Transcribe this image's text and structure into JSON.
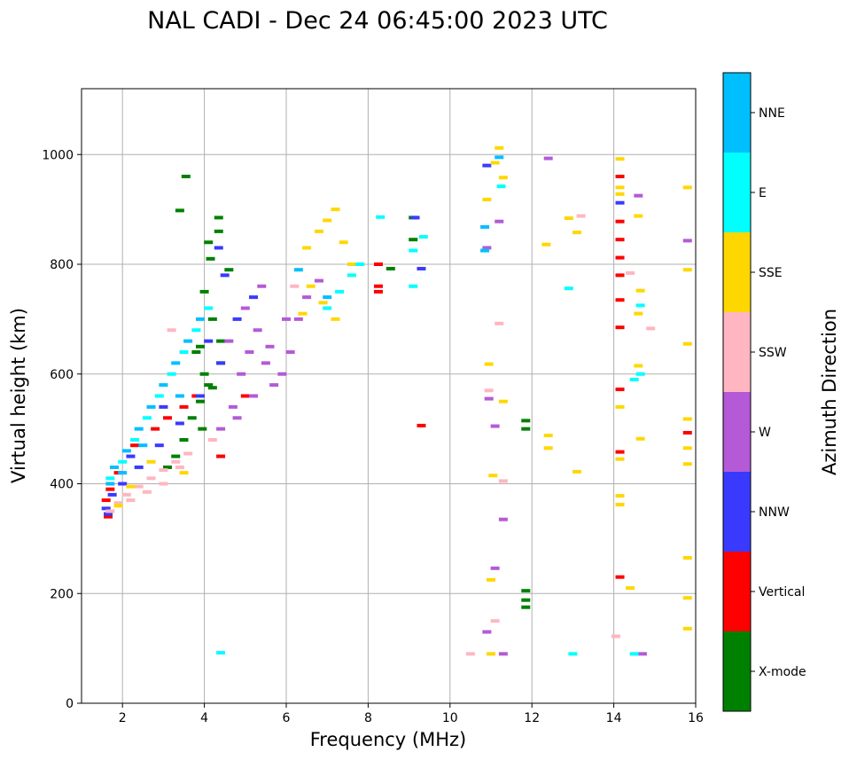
{
  "chart_data": {
    "type": "scatter",
    "title": "NAL CADI - Dec 24 06:45:00 2023 UTC",
    "xlabel": "Frequency (MHz)",
    "ylabel": "Virtual height (km)",
    "xlim": [
      1,
      16
    ],
    "ylim": [
      0,
      1120
    ],
    "xticks": [
      2,
      4,
      6,
      8,
      10,
      12,
      14,
      16
    ],
    "yticks": [
      0,
      200,
      400,
      600,
      800,
      1000
    ],
    "grid": true,
    "colorbar": {
      "label": "Azimuth Direction",
      "categories": [
        {
          "name": "X-mode",
          "color": "#008000"
        },
        {
          "name": "Vertical",
          "color": "#ff0000"
        },
        {
          "name": "NNW",
          "color": "#3a3aff"
        },
        {
          "name": "W",
          "color": "#b45ad6"
        },
        {
          "name": "SSW",
          "color": "#ffb6c1"
        },
        {
          "name": "SSE",
          "color": "#ffd700"
        },
        {
          "name": "E",
          "color": "#00ffff"
        },
        {
          "name": "NNE",
          "color": "#00bfff"
        }
      ]
    },
    "series": [
      {
        "name": "X-mode",
        "points": [
          [
            3.55,
            960
          ],
          [
            3.4,
            898
          ],
          [
            4.35,
            885
          ],
          [
            4.35,
            860
          ],
          [
            4.1,
            840
          ],
          [
            4.15,
            810
          ],
          [
            4.0,
            750
          ],
          [
            4.2,
            700
          ],
          [
            3.9,
            650
          ],
          [
            4.0,
            600
          ],
          [
            4.1,
            580
          ],
          [
            3.9,
            550
          ],
          [
            3.7,
            520
          ],
          [
            3.5,
            480
          ],
          [
            3.3,
            450
          ],
          [
            3.1,
            430
          ],
          [
            4.6,
            790
          ],
          [
            4.4,
            620
          ],
          [
            4.2,
            575
          ],
          [
            3.95,
            500
          ],
          [
            9.1,
            885
          ],
          [
            9.1,
            845
          ],
          [
            11.85,
            515
          ],
          [
            11.85,
            500
          ],
          [
            11.85,
            205
          ],
          [
            11.85,
            188
          ],
          [
            11.85,
            175
          ],
          [
            8.55,
            792
          ],
          [
            4.4,
            660
          ],
          [
            3.8,
            640
          ]
        ]
      },
      {
        "name": "Vertical",
        "points": [
          [
            1.6,
            370
          ],
          [
            1.7,
            390
          ],
          [
            1.9,
            420
          ],
          [
            2.3,
            470
          ],
          [
            2.8,
            500
          ],
          [
            3.1,
            520
          ],
          [
            3.5,
            540
          ],
          [
            3.8,
            560
          ],
          [
            14.15,
            960
          ],
          [
            14.15,
            878
          ],
          [
            14.15,
            845
          ],
          [
            14.15,
            812
          ],
          [
            14.15,
            780
          ],
          [
            14.15,
            735
          ],
          [
            14.15,
            685
          ],
          [
            14.15,
            572
          ],
          [
            14.15,
            458
          ],
          [
            14.15,
            230
          ],
          [
            15.8,
            493
          ],
          [
            9.3,
            506
          ],
          [
            8.25,
            760
          ],
          [
            8.25,
            750
          ],
          [
            8.25,
            800
          ],
          [
            4.4,
            450
          ],
          [
            5.0,
            560
          ],
          [
            1.65,
            340
          ]
        ]
      },
      {
        "name": "NNW",
        "points": [
          [
            1.6,
            355
          ],
          [
            1.75,
            380
          ],
          [
            2.0,
            400
          ],
          [
            2.4,
            430
          ],
          [
            2.9,
            470
          ],
          [
            3.4,
            510
          ],
          [
            3.9,
            560
          ],
          [
            4.4,
            620
          ],
          [
            4.8,
            700
          ],
          [
            5.2,
            740
          ],
          [
            4.5,
            780
          ],
          [
            4.35,
            830
          ],
          [
            10.9,
            980
          ],
          [
            14.15,
            912
          ],
          [
            9.3,
            792
          ],
          [
            9.15,
            885
          ],
          [
            2.2,
            450
          ],
          [
            3.0,
            540
          ],
          [
            1.65,
            345
          ],
          [
            4.1,
            660
          ]
        ]
      },
      {
        "name": "W",
        "points": [
          [
            4.7,
            540
          ],
          [
            4.9,
            600
          ],
          [
            5.1,
            640
          ],
          [
            5.3,
            680
          ],
          [
            5.5,
            620
          ],
          [
            5.7,
            580
          ],
          [
            5.9,
            600
          ],
          [
            6.1,
            640
          ],
          [
            6.3,
            700
          ],
          [
            6.5,
            740
          ],
          [
            6.8,
            770
          ],
          [
            4.8,
            520
          ],
          [
            5.2,
            560
          ],
          [
            5.6,
            650
          ],
          [
            6.0,
            700
          ],
          [
            4.6,
            660
          ],
          [
            5.0,
            720
          ],
          [
            5.4,
            760
          ],
          [
            4.4,
            500
          ],
          [
            12.4,
            993
          ],
          [
            15.8,
            843
          ],
          [
            14.6,
            925
          ],
          [
            11.2,
            878
          ],
          [
            10.9,
            830
          ],
          [
            10.95,
            555
          ],
          [
            11.3,
            90
          ],
          [
            14.7,
            90
          ],
          [
            10.9,
            130
          ],
          [
            11.1,
            246
          ],
          [
            11.3,
            335
          ],
          [
            11.1,
            505
          ]
        ]
      },
      {
        "name": "SSW",
        "points": [
          [
            1.7,
            350
          ],
          [
            1.9,
            365
          ],
          [
            2.1,
            380
          ],
          [
            2.4,
            395
          ],
          [
            2.7,
            410
          ],
          [
            3.0,
            425
          ],
          [
            3.3,
            440
          ],
          [
            3.6,
            455
          ],
          [
            2.2,
            370
          ],
          [
            2.6,
            385
          ],
          [
            3.0,
            400
          ],
          [
            3.4,
            430
          ],
          [
            3.2,
            680
          ],
          [
            4.2,
            480
          ],
          [
            6.2,
            760
          ],
          [
            13.2,
            888
          ],
          [
            14.4,
            784
          ],
          [
            14.9,
            683
          ],
          [
            11.2,
            692
          ],
          [
            10.95,
            570
          ],
          [
            11.3,
            405
          ],
          [
            11.1,
            150
          ],
          [
            10.5,
            90
          ],
          [
            14.05,
            122
          ]
        ]
      },
      {
        "name": "SSE",
        "points": [
          [
            6.5,
            830
          ],
          [
            6.8,
            860
          ],
          [
            7.0,
            880
          ],
          [
            7.2,
            900
          ],
          [
            7.4,
            840
          ],
          [
            7.6,
            800
          ],
          [
            6.6,
            760
          ],
          [
            6.9,
            730
          ],
          [
            7.2,
            700
          ],
          [
            6.4,
            710
          ],
          [
            3.5,
            420
          ],
          [
            2.7,
            440
          ],
          [
            2.2,
            395
          ],
          [
            1.9,
            360
          ],
          [
            11.2,
            1012
          ],
          [
            11.1,
            985
          ],
          [
            11.3,
            958
          ],
          [
            10.9,
            918
          ],
          [
            12.35,
            836
          ],
          [
            12.9,
            884
          ],
          [
            13.1,
            858
          ],
          [
            14.15,
            992
          ],
          [
            14.15,
            940
          ],
          [
            14.15,
            928
          ],
          [
            14.6,
            888
          ],
          [
            14.65,
            752
          ],
          [
            14.6,
            710
          ],
          [
            14.6,
            615
          ],
          [
            14.15,
            540
          ],
          [
            14.65,
            482
          ],
          [
            14.15,
            445
          ],
          [
            12.4,
            488
          ],
          [
            12.4,
            465
          ],
          [
            13.1,
            422
          ],
          [
            11.3,
            550
          ],
          [
            11.05,
            415
          ],
          [
            10.95,
            618
          ],
          [
            14.15,
            378
          ],
          [
            14.15,
            362
          ],
          [
            14.4,
            210
          ],
          [
            15.8,
            940
          ],
          [
            15.8,
            790
          ],
          [
            15.8,
            655
          ],
          [
            15.8,
            518
          ],
          [
            15.8,
            465
          ],
          [
            15.8,
            436
          ],
          [
            15.8,
            265
          ],
          [
            15.8,
            192
          ],
          [
            15.8,
            136
          ],
          [
            11.0,
            90
          ],
          [
            11.0,
            225
          ]
        ]
      },
      {
        "name": "E",
        "points": [
          [
            1.7,
            410
          ],
          [
            2.0,
            440
          ],
          [
            2.3,
            480
          ],
          [
            2.6,
            520
          ],
          [
            2.9,
            560
          ],
          [
            3.2,
            600
          ],
          [
            3.5,
            640
          ],
          [
            3.8,
            680
          ],
          [
            4.1,
            720
          ],
          [
            7.0,
            720
          ],
          [
            7.3,
            750
          ],
          [
            7.6,
            780
          ],
          [
            7.8,
            800
          ],
          [
            8.3,
            886
          ],
          [
            9.1,
            825
          ],
          [
            9.35,
            850
          ],
          [
            9.1,
            760
          ],
          [
            11.25,
            942
          ],
          [
            12.9,
            756
          ],
          [
            14.5,
            590
          ],
          [
            14.65,
            600
          ],
          [
            14.5,
            90
          ],
          [
            13.0,
            90
          ],
          [
            4.4,
            92
          ],
          [
            14.65,
            725
          ]
        ]
      },
      {
        "name": "NNE",
        "points": [
          [
            1.8,
            430
          ],
          [
            2.1,
            460
          ],
          [
            2.4,
            500
          ],
          [
            2.7,
            540
          ],
          [
            3.0,
            580
          ],
          [
            3.3,
            620
          ],
          [
            3.6,
            660
          ],
          [
            3.9,
            700
          ],
          [
            2.5,
            470
          ],
          [
            3.4,
            560
          ],
          [
            7.0,
            740
          ],
          [
            6.3,
            790
          ],
          [
            10.85,
            868
          ],
          [
            10.85,
            825
          ],
          [
            11.2,
            995
          ],
          [
            1.7,
            400
          ],
          [
            2.0,
            420
          ]
        ]
      }
    ]
  }
}
